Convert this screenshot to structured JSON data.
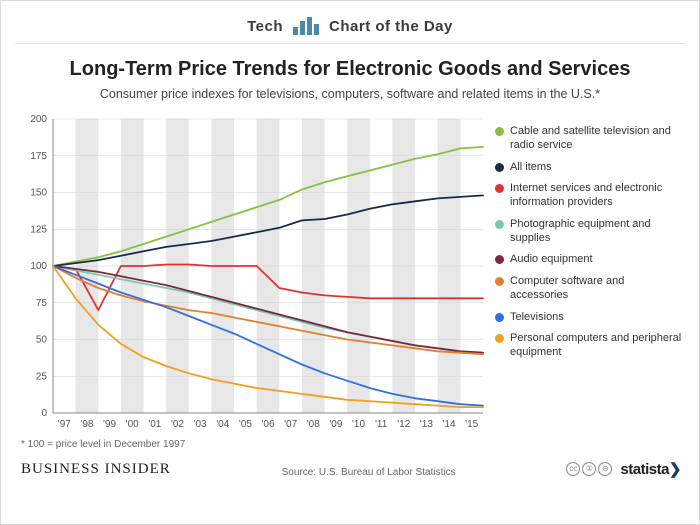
{
  "kicker_left": "Tech",
  "kicker_right": "Chart of the Day",
  "title": "Long-Term Price Trends for Electronic Goods and Services",
  "subtitle": "Consumer price indexes for televisions, computers, software and related items in the U.S.*",
  "footnote": "* 100 = price level in December 1997",
  "brand_left": "BUSINESS INSIDER",
  "source": "Source: U.S. Bureau of Labor Statistics",
  "brand_right": "statista",
  "chart": {
    "type": "line",
    "background_color": "#ffffff",
    "stripe_color": "#e7e7e7",
    "grid_color": "#d0d0d0",
    "axis_color": "#888888",
    "tick_fontsize": 10,
    "line_width": 1.8,
    "xlim": [
      1997,
      2015.7
    ],
    "ylim": [
      0,
      200
    ],
    "ytick_step": 25,
    "x_labels": [
      "'97",
      "'98",
      "'99",
      "'00",
      "'01",
      "'02",
      "'03",
      "'04",
      "'05",
      "'06",
      "'07",
      "'08",
      "'09",
      "'10",
      "'11",
      "'12",
      "'13",
      "'14",
      "'15"
    ],
    "series": [
      {
        "key": "cable",
        "label": "Cable and satellite television and radio service",
        "color": "#88c040",
        "y": [
          100,
          103,
          106,
          110,
          115,
          120,
          125,
          130,
          135,
          140,
          145,
          152,
          157,
          161,
          165,
          169,
          173,
          176,
          180,
          181
        ]
      },
      {
        "key": "all_items",
        "label": "All items",
        "color": "#1a2b4a",
        "y": [
          100,
          102,
          104,
          107,
          110,
          113,
          115,
          117,
          120,
          123,
          126,
          131,
          132,
          135,
          139,
          142,
          144,
          146,
          147,
          148
        ]
      },
      {
        "key": "internet",
        "label": "Internet services and electronic information providers",
        "color": "#e03030",
        "y": [
          100,
          98,
          70,
          100,
          100,
          101,
          101,
          100,
          100,
          100,
          85,
          82,
          80,
          79,
          78,
          78,
          78,
          78,
          78,
          78
        ]
      },
      {
        "key": "photo",
        "label": "Photographic equipment and supplies",
        "color": "#7bc9b0",
        "y": [
          100,
          97,
          94,
          91,
          88,
          85,
          82,
          78,
          74,
          70,
          66,
          62,
          58,
          55,
          52,
          49,
          46,
          44,
          42,
          41
        ]
      },
      {
        "key": "audio",
        "label": "Audio equipment",
        "color": "#7a2840",
        "y": [
          100,
          98,
          96,
          93,
          90,
          87,
          83,
          79,
          75,
          71,
          67,
          63,
          59,
          55,
          52,
          49,
          46,
          44,
          42,
          41
        ]
      },
      {
        "key": "software",
        "label": "Computer software and accessories",
        "color": "#e08030",
        "y": [
          100,
          92,
          85,
          80,
          76,
          73,
          70,
          68,
          65,
          62,
          59,
          56,
          53,
          50,
          48,
          46,
          44,
          42,
          41,
          40
        ]
      },
      {
        "key": "tv",
        "label": "Televisions",
        "color": "#3070e0",
        "y": [
          100,
          94,
          88,
          82,
          77,
          72,
          66,
          60,
          54,
          47,
          40,
          33,
          27,
          22,
          17,
          13,
          10,
          8,
          6,
          5
        ]
      },
      {
        "key": "pc",
        "label": "Personal computers and peripheral equipment",
        "color": "#f0a020",
        "y": [
          100,
          78,
          60,
          47,
          38,
          32,
          27,
          23,
          20,
          17,
          15,
          13,
          11,
          9,
          8,
          7,
          6,
          5,
          4,
          4
        ]
      }
    ]
  }
}
